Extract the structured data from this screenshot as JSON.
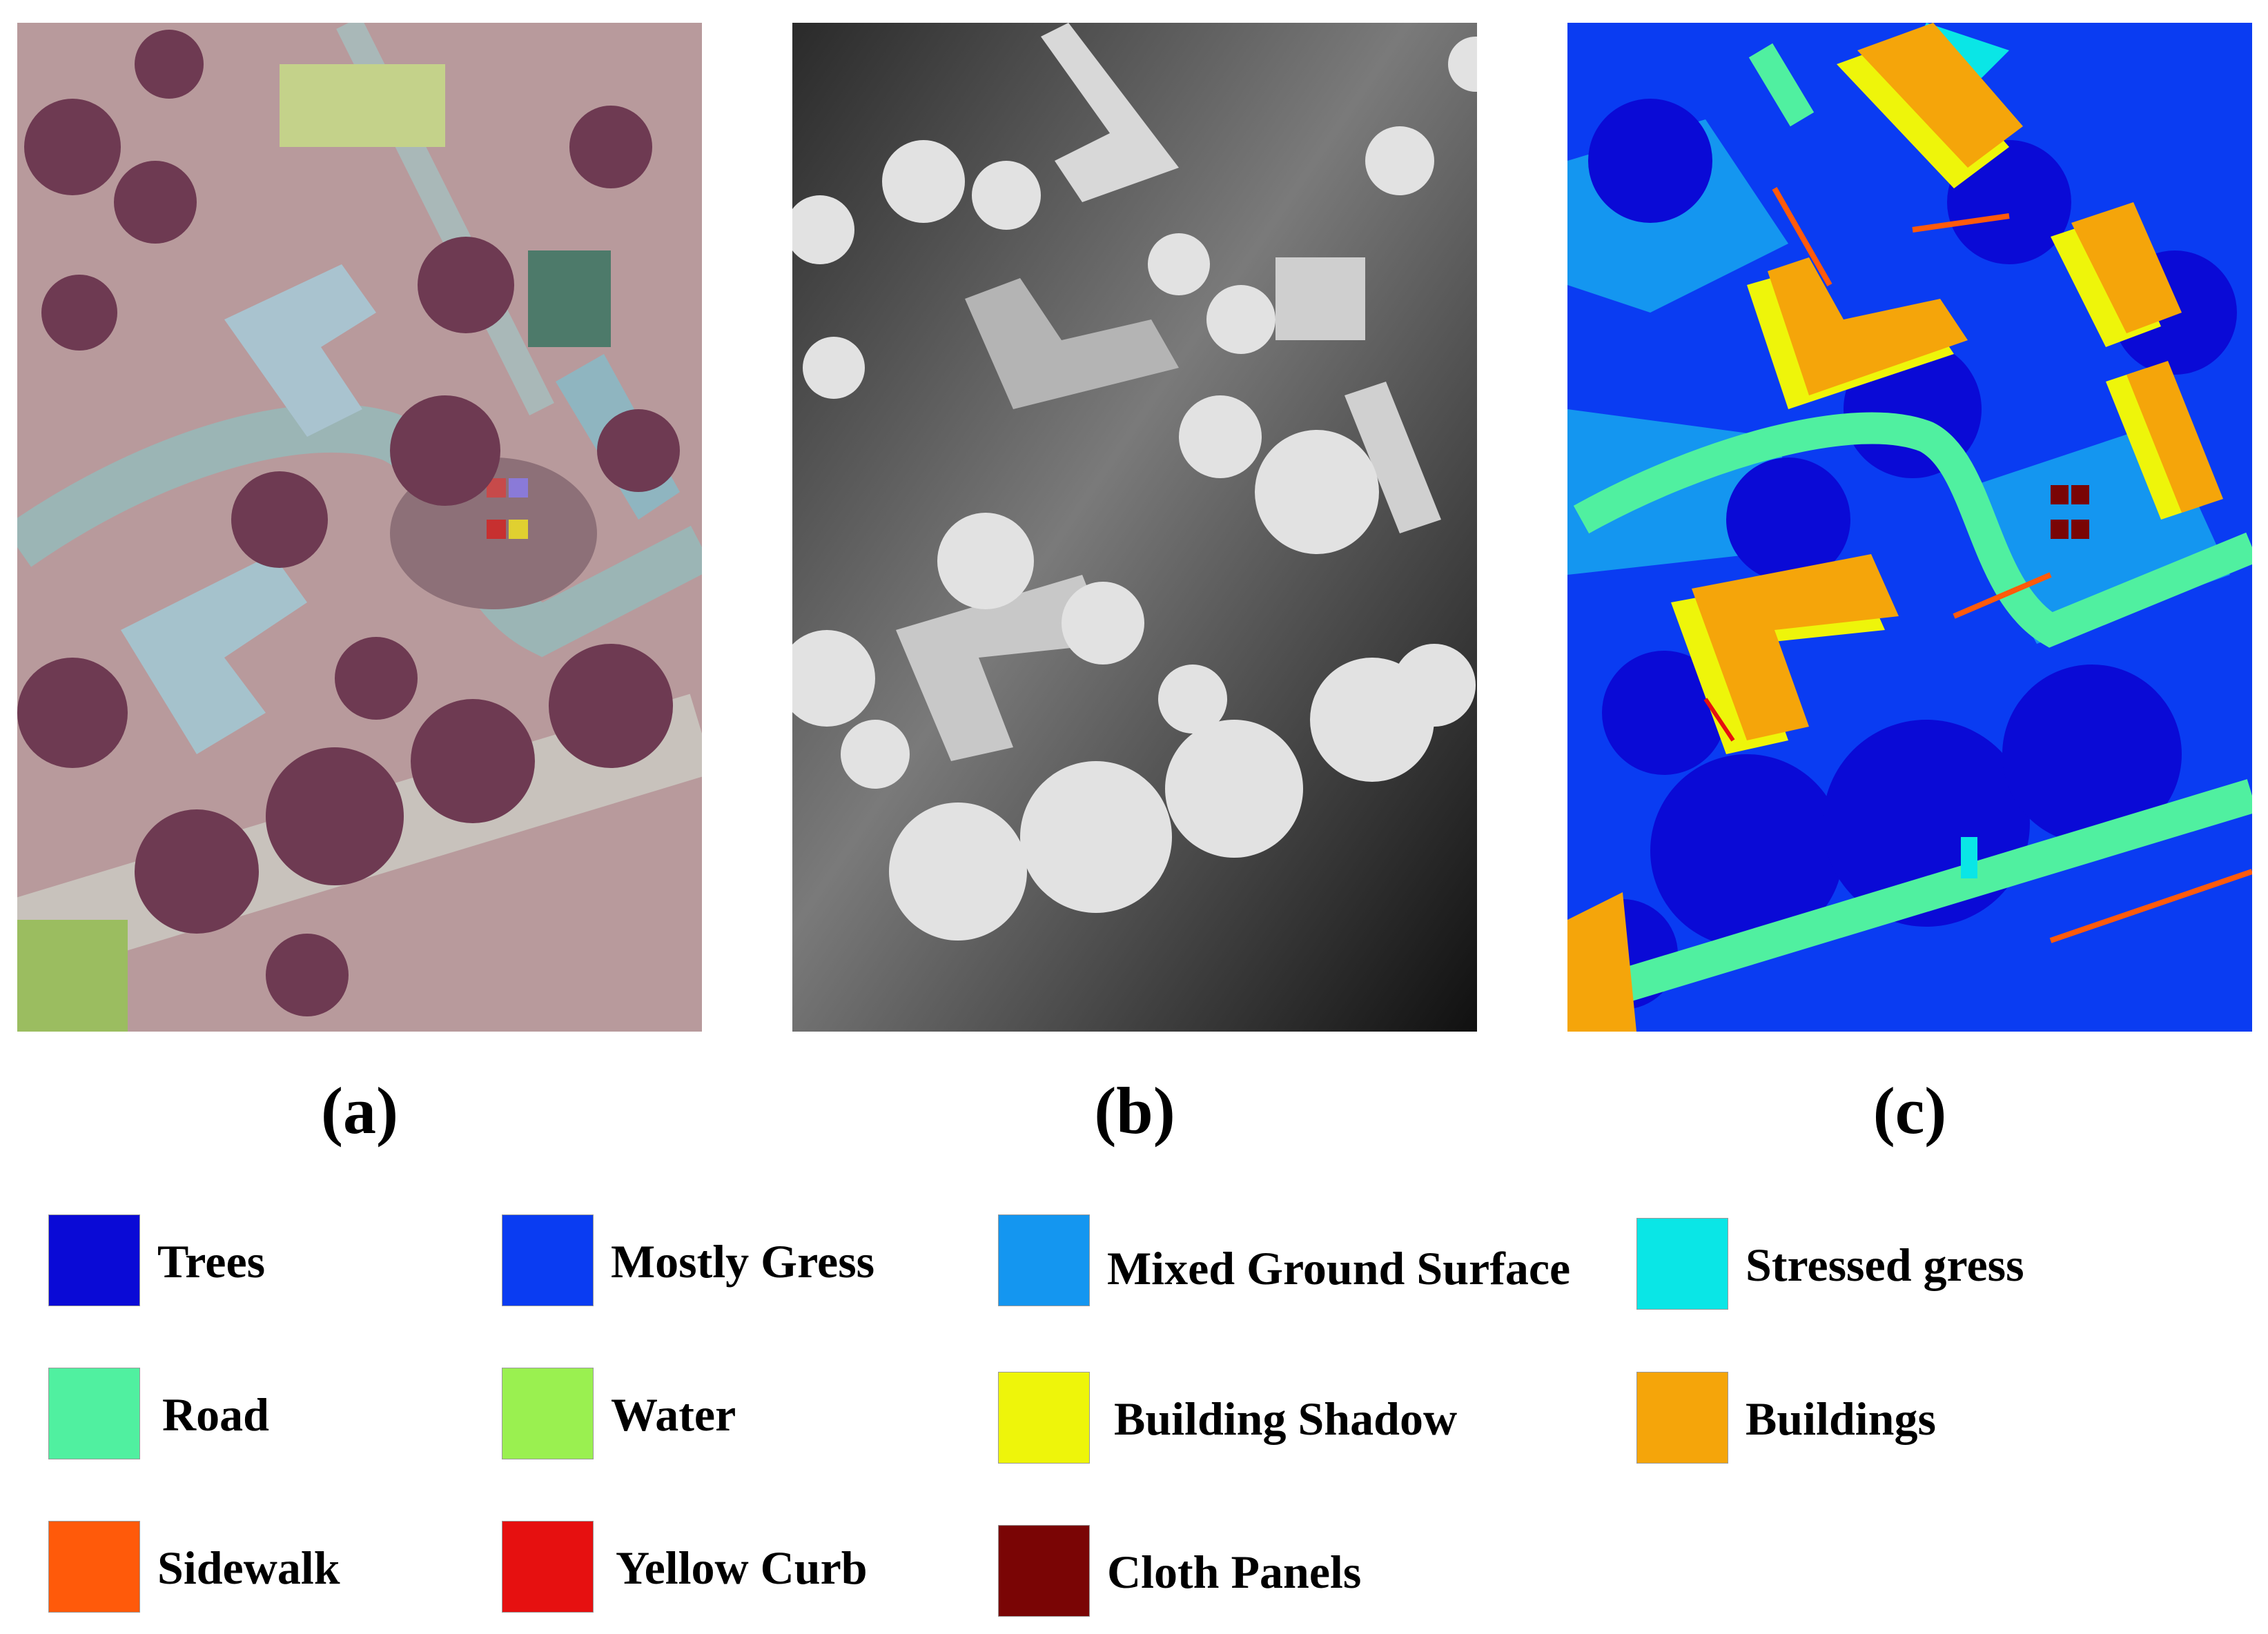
{
  "panels": [
    {
      "id": "a",
      "caption": "(a)",
      "content": "aerial-color-image"
    },
    {
      "id": "b",
      "caption": "(b)",
      "content": "grayscale-lidar-height-map"
    },
    {
      "id": "c",
      "caption": "(c)",
      "content": "classification-ground-truth-map"
    }
  ],
  "legend": [
    {
      "label": "Trees",
      "color": "#0a0ad6"
    },
    {
      "label": "Mostly Gress",
      "color": "#0a3cf2"
    },
    {
      "label": "Mixed Ground Surface",
      "color": "#1496f0"
    },
    {
      "label": "Stressed gress",
      "color": "#0ae6e6"
    },
    {
      "label": "Road",
      "color": "#50f0a0"
    },
    {
      "label": "Water",
      "color": "#9af050"
    },
    {
      "label": "Building Shadow",
      "color": "#eef50a"
    },
    {
      "label": "Buildings",
      "color": "#f5a50a"
    },
    {
      "label": "Sidewalk",
      "color": "#ff5a0a"
    },
    {
      "label": "Yellow Curb",
      "color": "#e61010"
    },
    {
      "label": "Cloth Panels",
      "color": "#7a0505"
    }
  ]
}
